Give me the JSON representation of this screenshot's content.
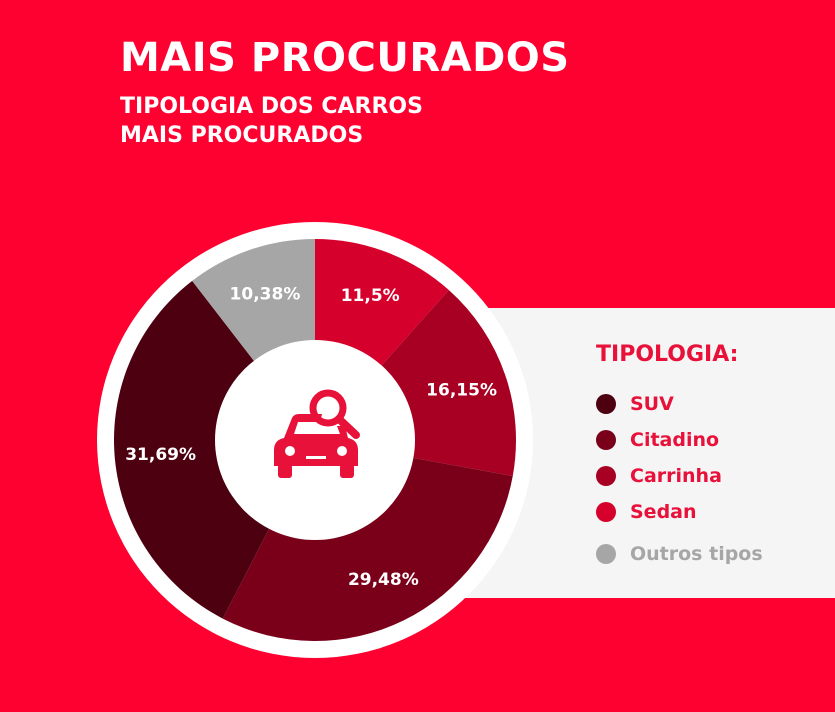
{
  "header": {
    "title": "MAIS PROCURADOS",
    "subtitle_line1": "TIPOLOGIA DOS CARROS",
    "subtitle_line2": "MAIS PROCURADOS"
  },
  "colors": {
    "background": "#fe0131",
    "accent_text": "#e8113a",
    "other_text": "#a6a6a6"
  },
  "chart_data": {
    "type": "pie",
    "variant": "donut",
    "legend_title": "TIPOLOGIA:",
    "legend_position": "right",
    "center_icon": "car-search-icon",
    "slices": [
      {
        "name": "Sedan",
        "value": 11.5,
        "label": "11,5%",
        "color": "#d6002c"
      },
      {
        "name": "Carrinha",
        "value": 16.15,
        "label": "16,15%",
        "color": "#a80022"
      },
      {
        "name": "Citadino",
        "value": 29.48,
        "label": "29,48%",
        "color": "#7a0019"
      },
      {
        "name": "SUV",
        "value": 31.69,
        "label": "31,69%",
        "color": "#4d0010"
      },
      {
        "name": "Outros tipos",
        "value": 10.38,
        "label": "10,38%",
        "color": "#a6a6a6"
      }
    ],
    "legend_order": [
      "SUV",
      "Citadino",
      "Carrinha",
      "Sedan",
      "Outros tipos"
    ]
  }
}
